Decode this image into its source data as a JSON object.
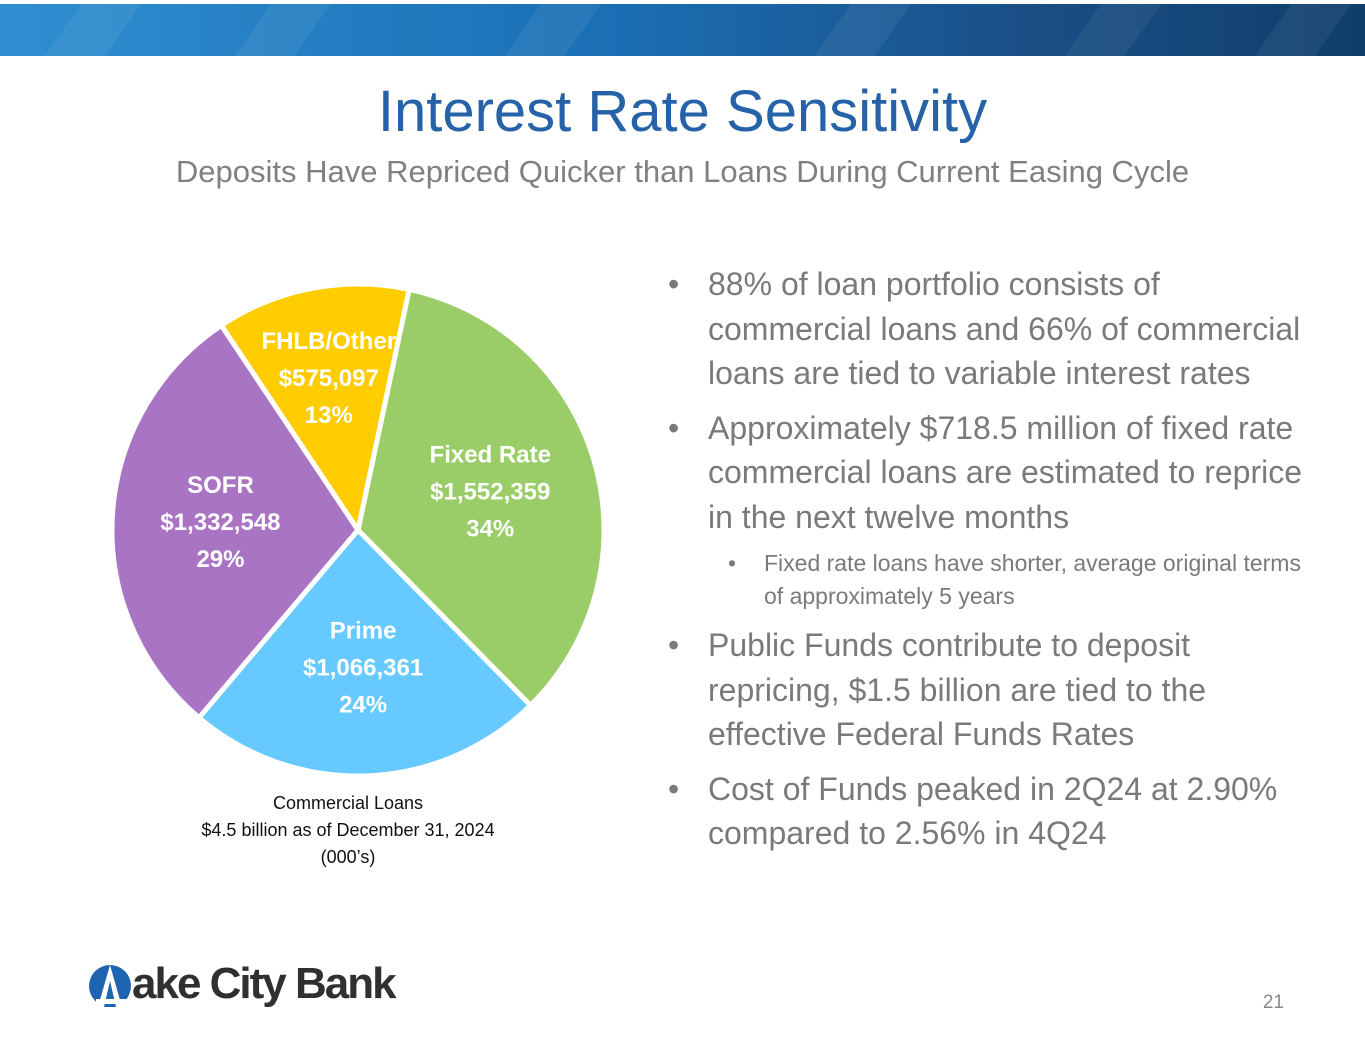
{
  "header": {
    "title": "Interest Rate Sensitivity",
    "subtitle": "Deposits Have Repriced Quicker than Loans During Current Easing Cycle"
  },
  "chart_data": {
    "type": "pie",
    "slices": [
      {
        "label": "Fixed Rate",
        "value": 1552359,
        "value_text": "$1,552,359",
        "percent": 34,
        "percent_text": "34%",
        "color": "#9acd68"
      },
      {
        "label": "Prime",
        "value": 1066361,
        "value_text": "$1,066,361",
        "percent": 24,
        "percent_text": "24%",
        "color": "#66c9ff"
      },
      {
        "label": "SOFR",
        "value": 1332548,
        "value_text": "$1,332,548",
        "percent": 29,
        "percent_text": "29%",
        "color": "#a974c4"
      },
      {
        "label": "FHLB/Other",
        "value": 575097,
        "value_text": "$575,097",
        "percent": 13,
        "percent_text": "13%",
        "color": "#ffcc00"
      }
    ],
    "caption": [
      "Commercial Loans",
      "$4.5 billion as of December 31, 2024",
      "(000’s)"
    ]
  },
  "bullets": [
    {
      "text": "88% of loan portfolio consists of commercial loans and 66% of commercial loans are tied to variable interest rates"
    },
    {
      "text": "Approximately $718.5 million of fixed rate commercial loans are estimated to reprice in the next twelve months",
      "sub": "Fixed rate loans have shorter, average original terms of approximately 5 years"
    },
    {
      "text": "Public Funds contribute to deposit repricing, $1.5 billion are tied to the effective Federal Funds Rates"
    },
    {
      "text": "Cost of Funds peaked in 2Q24 at 2.90% compared to 2.56% in 4Q24"
    }
  ],
  "bullet_glyph": "•",
  "footer": {
    "logo_text": "ake City Bank",
    "page_number": "21"
  },
  "colors": {
    "title": "#2562a8",
    "banner_start": "#2f8fd0",
    "banner_end": "#0f3e6b"
  }
}
